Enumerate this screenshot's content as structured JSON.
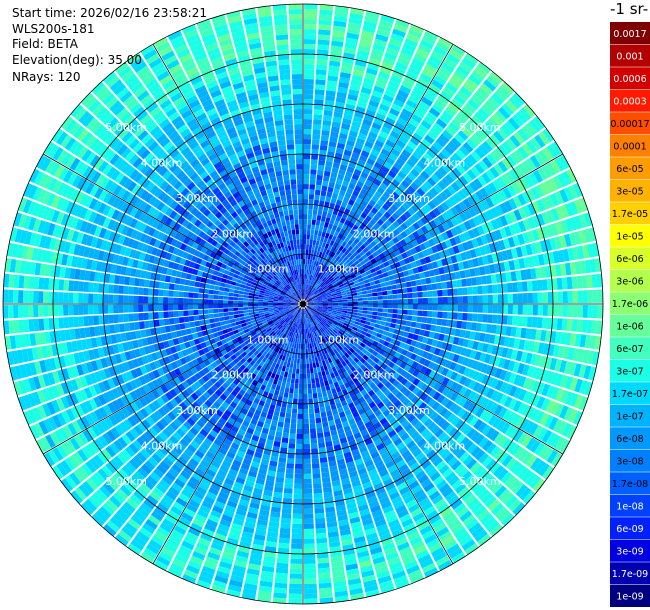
{
  "header": {
    "start_time": "Start time: 2026/02/16 23:58:21",
    "instrument": "WLS200s-181",
    "field": "Field: BETA",
    "elevation": "Elevation(deg): 35.00",
    "nrays": "NRays: 120"
  },
  "colorbar": {
    "title": "-1 sr-",
    "labels": [
      "0.0017",
      "0.001",
      "0.0006",
      "0.0003",
      "0.00017",
      "0.0001",
      "6e-05",
      "3e-05",
      "1.7e-05",
      "1e-05",
      "6e-06",
      "3e-06",
      "1.7e-06",
      "1e-06",
      "6e-07",
      "3e-07",
      "1.7e-07",
      "1e-07",
      "6e-08",
      "3e-08",
      "1.7e-08",
      "1e-08",
      "6e-09",
      "3e-09",
      "1.7e-09",
      "1e-09"
    ],
    "colors": [
      "#7f0000",
      "#b30000",
      "#d40000",
      "#ff1a00",
      "#ff4d00",
      "#ff8000",
      "#ff9d00",
      "#ffb300",
      "#ffd000",
      "#ffff00",
      "#d9ff26",
      "#b3ff4d",
      "#8cff73",
      "#66ff99",
      "#40ffbf",
      "#1affe6",
      "#00d9ff",
      "#00b3ff",
      "#0099ff",
      "#0080ff",
      "#0060ff",
      "#0040ff",
      "#0020ff",
      "#0000e0",
      "#0000b0",
      "#000080"
    ]
  },
  "chart_data": {
    "type": "heatmap",
    "projection": "polar-ppi",
    "field": "BETA",
    "elevation_deg": 35.0,
    "n_rays": 120,
    "max_range_km": 6.0,
    "range_rings_km": [
      1.0,
      2.0,
      3.0,
      4.0,
      5.0,
      6.0
    ],
    "ring_labels": [
      "1.00km",
      "2.00km",
      "3.00km",
      "4.00km",
      "5.00km"
    ],
    "spoke_angles_deg": [
      0,
      30,
      60,
      90,
      120,
      150,
      180,
      210,
      240,
      270,
      300,
      330
    ],
    "color_scale": "log",
    "value_range": [
      1e-09,
      0.0017
    ],
    "gate_spacing_km": 0.1
  }
}
